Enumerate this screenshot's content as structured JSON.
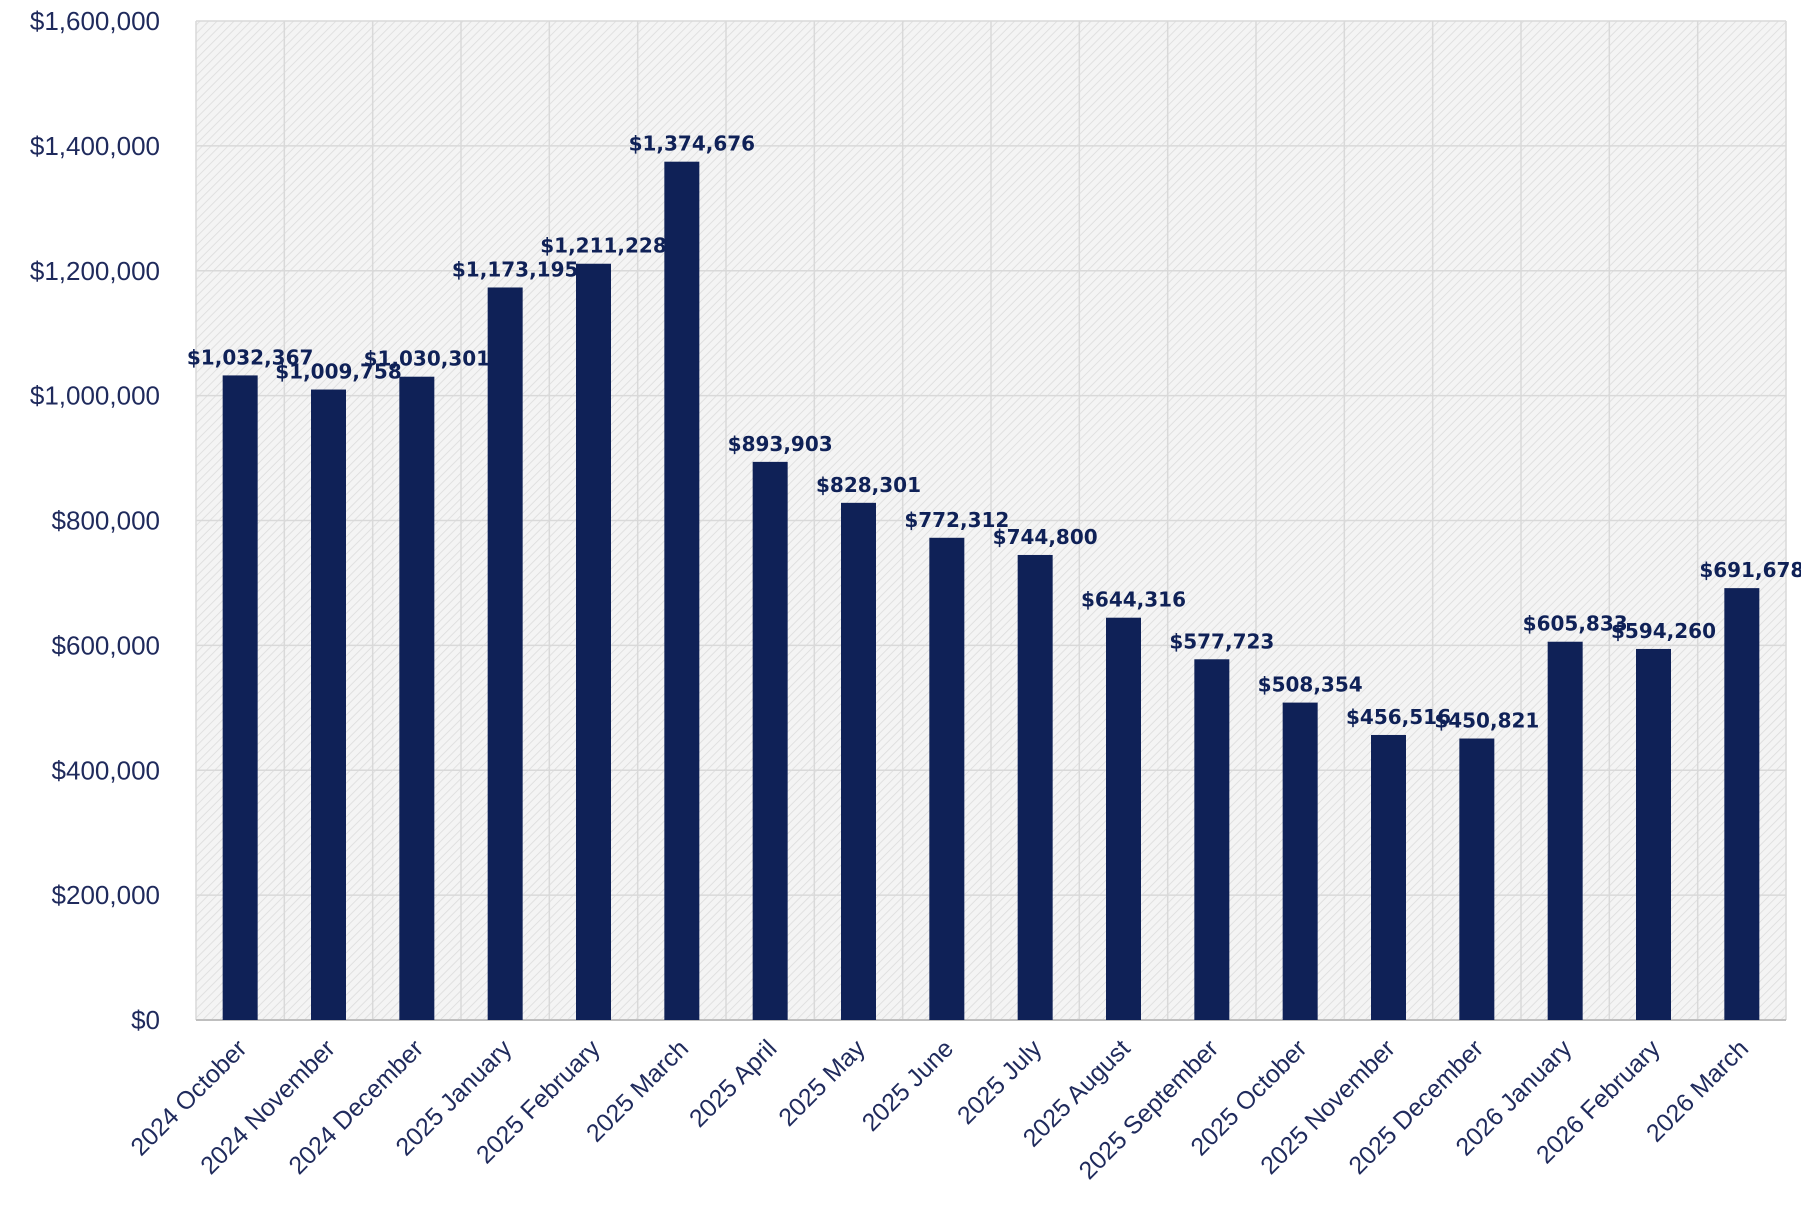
{
  "chart_data": {
    "type": "bar",
    "categories": [
      "2024 October",
      "2024 November",
      "2024 December",
      "2025 January",
      "2025 February",
      "2025 March",
      "2025 April",
      "2025 May",
      "2025 June",
      "2025 July",
      "2025 August",
      "2025 September",
      "2025 October",
      "2025 November",
      "2025 December",
      "2026 January",
      "2026 February",
      "2026 March"
    ],
    "values": [
      1032367,
      1009758,
      1030301,
      1173195,
      1211228,
      1374676,
      893903,
      828301,
      772312,
      744800,
      644316,
      577723,
      508354,
      456516,
      450821,
      605833,
      594260,
      691678
    ],
    "data_labels": [
      "$1,032,367",
      "$1,009,758",
      "$1,030,301",
      "$1,173,195",
      "$1,211,228",
      "$1,374,676",
      "$893,903",
      "$828,301",
      "$772,312",
      "$744,800",
      "$644,316",
      "$577,723",
      "$508,354",
      "$456,516",
      "$450,821",
      "$605,833",
      "$594,260",
      "$691,678"
    ],
    "y_ticks": [
      0,
      200000,
      400000,
      600000,
      800000,
      1000000,
      1200000,
      1400000,
      1600000
    ],
    "y_tick_labels": [
      "$0",
      "$200,000",
      "$400,000",
      "$600,000",
      "$800,000",
      "$1,000,000",
      "$1,200,000",
      "$1,400,000",
      "$1,600,000"
    ],
    "ylim": [
      0,
      1600000
    ],
    "title": "",
    "xlabel": "",
    "ylabel": "",
    "grid": true,
    "legend": "none",
    "colors": {
      "bar": "#0f2157",
      "axis_text": "#1f2a5c",
      "grid": "#d9d9d9",
      "plot_bg": "#f3f3f3"
    }
  }
}
